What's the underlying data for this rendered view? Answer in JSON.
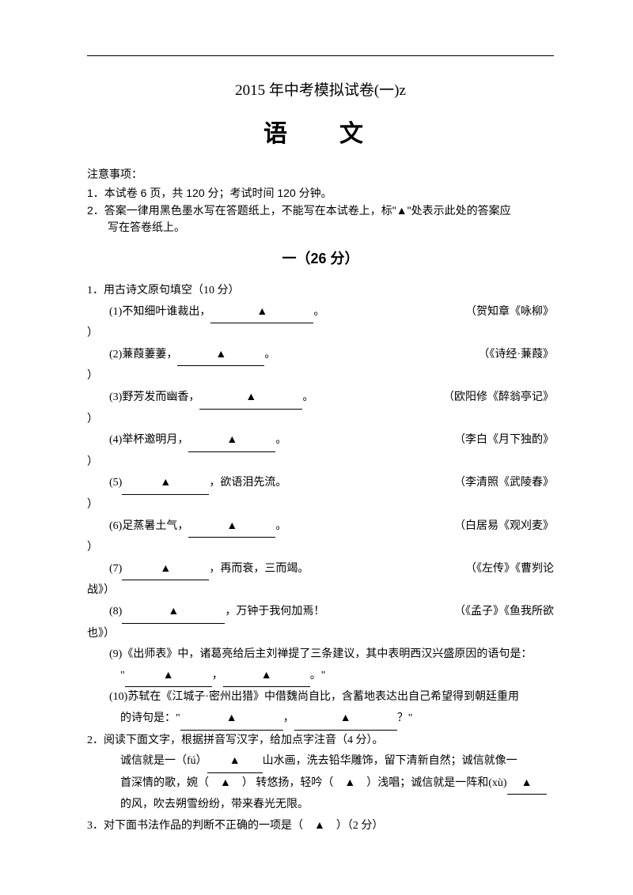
{
  "title": "2015 年中考模拟试卷(一)z",
  "subject": "语　文",
  "notice": {
    "head": "注意事项：",
    "items": [
      "1．本试卷 6 页，共 120 分；考试时间 120 分钟。",
      "2．答案一律用黑色墨水写在答题纸上，不能写在本试卷上，标\"▲\"处表示此处的答案应",
      "写在答卷纸上。"
    ]
  },
  "section": "一（26 分）",
  "q1": {
    "stem": "1．用古诗文原句填空（10 分）",
    "items": [
      {
        "left_a": "(1)不知细叶谁裁出，",
        "left_b": "。",
        "right": "（贺知章《咏柳》"
      },
      {
        "left_a": "(2)蒹葭萋萋，",
        "left_b": "。",
        "right": "（《诗经·蒹葭》"
      },
      {
        "left_a": "(3)野芳发而幽香，",
        "left_b": "。",
        "right": "（欧阳修《醉翁亭记》"
      },
      {
        "left_a": "(4)举杯邀明月，",
        "left_b": "。",
        "right": "（李白《月下独酌》"
      },
      {
        "left_a": "(5)",
        "left_b": "，欲语泪先流。",
        "right": "（李清照《武陵春》"
      },
      {
        "left_a": "(6)足蒸暑土气，",
        "left_b": "。",
        "right": "（白居易《观刈麦》"
      },
      {
        "left_a": "(7)",
        "left_b": "，再而衰，三而竭。",
        "right": "（《左传》《曹刿论"
      },
      {
        "left_a": "(8)",
        "left_b": "，万钟于我何加焉！",
        "right": "（《孟子》《鱼我所欲"
      }
    ],
    "dangle7": "战》）",
    "dangle8": "也》）",
    "dangleGeneric": "）",
    "item9a": "(9)《出师表》中，诸葛亮给后主刘禅提了三条建议，其中表明西汉兴盛原因的语句是：",
    "item9b_pre": "\"",
    "item9b_mid": "，",
    "item9b_post": "。\"",
    "item10a": "(10)苏轼在《江城子·密州出猎》中借魏尚自比，含蓄地表达出自己希望得到朝廷重用",
    "item10b_pre": "的诗句是：\"",
    "item10b_mid": "，",
    "item10b_post": "？\""
  },
  "q2": {
    "stem": "2．阅读下面文字，根据拼音写汉字，给加点字注音（4 分）。",
    "p1a": "诚信就是一（fú）",
    "p1b": "山水画，洗去铅华雕饰，留下清新自然；诚信就像一",
    "p2a": "首深情的歌，婉（　▲　） 转悠扬，轻吟（　▲　）浅唱；诚信就是一阵和(xù)",
    "p3": "的风，吹去朔雪纷纷，带来春光无限。"
  },
  "q3": "3．对下面书法作品的判断不正确的一项是（　▲　）（2 分）",
  "tri": "▲"
}
